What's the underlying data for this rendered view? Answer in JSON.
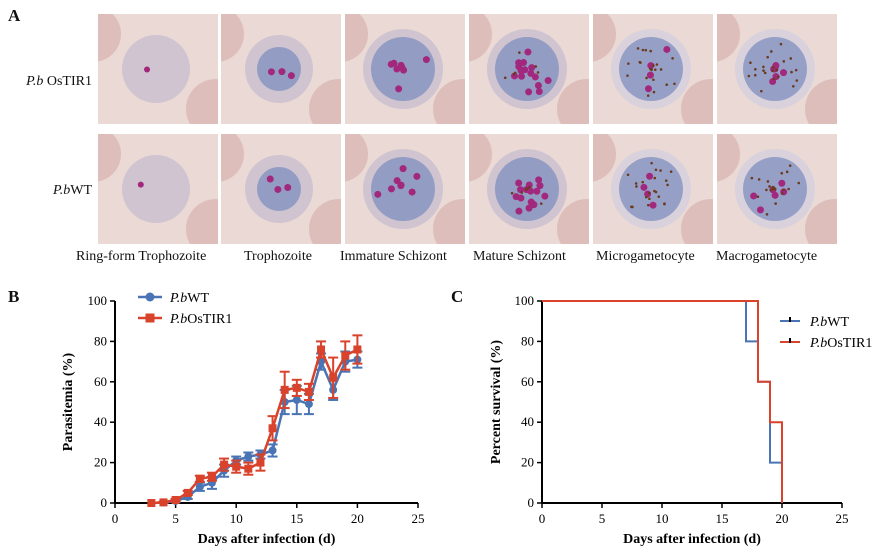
{
  "panel_a": {
    "letter": "A",
    "row_labels": [
      {
        "species": "P.b",
        "suffix": " OsTIR1"
      },
      {
        "species": "P.b",
        "suffix": "WT"
      }
    ],
    "stages": [
      "Ring-form Trophozoite",
      "Trophozoite",
      "Immature Schizont",
      "Mature Schizont",
      "Microgametocyte",
      "Macrogametocyte"
    ]
  },
  "colors": {
    "wt": "#4a74b3",
    "ostir1": "#d9432b",
    "tile_bg": "#ead9d4",
    "rbc": "#dbb6b3",
    "parasite": "#7f8fbf",
    "nucleus": "#a2287d",
    "pigment": "#6b3a1f"
  },
  "chart_data": [
    {
      "panel": "B",
      "type": "line",
      "xlabel": "Days after infection (d)",
      "ylabel": "Parasitemia (%)",
      "xlim": [
        0,
        25
      ],
      "ylim": [
        0,
        100
      ],
      "xticks": [
        0,
        5,
        10,
        15,
        20,
        25
      ],
      "yticks": [
        0,
        20,
        40,
        60,
        80,
        100
      ],
      "legend_position": "top-left",
      "series": [
        {
          "name": "P.bWT",
          "species": "P.b",
          "suffix": "WT",
          "marker": "circle",
          "color": "#4a74b3",
          "x": [
            3,
            4,
            5,
            6,
            7,
            8,
            9,
            10,
            11,
            12,
            13,
            14,
            15,
            16,
            17,
            18,
            19,
            20
          ],
          "y": [
            0,
            0.3,
            1,
            3,
            8,
            10,
            16,
            21,
            23,
            24,
            26,
            50,
            51,
            49,
            70,
            56,
            70,
            71
          ],
          "err": [
            0,
            0.3,
            0.5,
            1,
            2,
            3,
            3,
            2,
            2,
            2,
            3,
            6,
            7,
            5,
            4,
            5,
            5,
            4
          ]
        },
        {
          "name": "P.bOsTIR1",
          "species": "P.b",
          "suffix": "OsTIR1",
          "marker": "square",
          "color": "#d9432b",
          "x": [
            3,
            4,
            5,
            6,
            7,
            8,
            9,
            10,
            11,
            12,
            13,
            14,
            15,
            16,
            17,
            18,
            19,
            20
          ],
          "y": [
            0,
            0.3,
            1.5,
            5,
            12,
            13,
            19,
            18,
            17,
            20,
            37,
            56,
            57,
            55,
            76,
            62,
            73,
            76
          ],
          "err": [
            0,
            0.3,
            0.5,
            1,
            1.5,
            2,
            3,
            3,
            3,
            4,
            6,
            9,
            4,
            4,
            4,
            10,
            7,
            7
          ]
        }
      ]
    },
    {
      "panel": "C",
      "type": "line",
      "step": true,
      "xlabel": "Days after infection (d)",
      "ylabel": "Percent survival (%)",
      "xlim": [
        0,
        25
      ],
      "ylim": [
        0,
        100
      ],
      "xticks": [
        0,
        5,
        10,
        15,
        20,
        25
      ],
      "yticks": [
        0,
        20,
        40,
        60,
        80,
        100
      ],
      "legend_position": "top-right",
      "series": [
        {
          "name": "P.bWT",
          "species": "P.b",
          "suffix": "WT",
          "color": "#4a74b3",
          "x": [
            0,
            17,
            18,
            19,
            20
          ],
          "y": [
            100,
            80,
            60,
            20,
            0
          ]
        },
        {
          "name": "P.bOsTIR1",
          "species": "P.b",
          "suffix": "OsTIR1",
          "color": "#d9432b",
          "x": [
            0,
            18,
            19,
            20
          ],
          "y": [
            100,
            60,
            40,
            0
          ]
        }
      ]
    }
  ]
}
